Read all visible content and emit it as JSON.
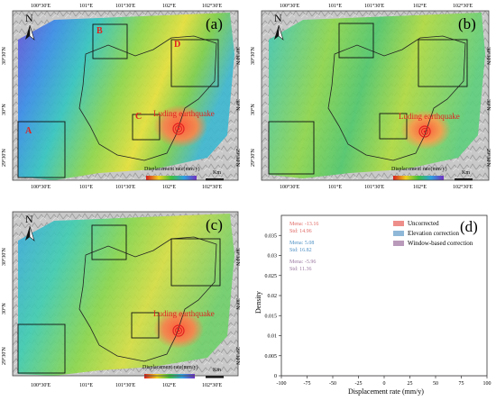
{
  "panels": {
    "a": {
      "label": "(a)",
      "boxes": [
        "A",
        "B",
        "C",
        "D"
      ],
      "legend_title": "Displacement rate(mm/y)",
      "scale_label": "Km",
      "earthquake_label": "Luding earthquake",
      "north": "N"
    },
    "b": {
      "label": "(b)",
      "legend_title": "Displacement rate(mm/y)",
      "scale_label": "Km",
      "earthquake_label": "Luding earthquake",
      "north": "N"
    },
    "c": {
      "label": "(c)",
      "legend_title": "Displacement rate(mm/y)",
      "scale_label": "Km",
      "earthquake_label": "Luding earthquake",
      "north": "N"
    }
  },
  "lon_ticks": [
    "100°30'E",
    "101°E",
    "101°30'E",
    "102°E",
    "102°30'E"
  ],
  "lat_ticks": [
    "30°30'N",
    "30°N",
    "29°30'N"
  ],
  "colors": {
    "earthquake_red": "#e02020",
    "box_line": "#111111",
    "uncorrected": "#ee8e8a",
    "elevation": "#8fb8d8",
    "window": "#b99aba"
  },
  "chart_data": {
    "type": "area",
    "panel_label": "(d)",
    "xlabel": "Displacement rate (mm/y)",
    "ylabel": "Density",
    "xlim": [
      -100,
      100
    ],
    "ylim": [
      0,
      0.04
    ],
    "x_ticks": [
      -100,
      -75,
      -50,
      -25,
      0,
      25,
      50,
      75,
      100
    ],
    "y_ticks": [
      0,
      0.005,
      0.01,
      0.015,
      0.02,
      0.025,
      0.03,
      0.035
    ],
    "legend_position": "top-right",
    "series": [
      {
        "name": "Uncorrected",
        "color": "#ee8e8a",
        "mean": -13.16,
        "std": 14.96,
        "stats": [
          "Mena: -13.16",
          "Std: 14.96"
        ]
      },
      {
        "name": "Elevation correction",
        "color": "#8fb8d8",
        "mean": 5.08,
        "std": 16.82,
        "stats": [
          "Mena: 5.08",
          "Std: 16.82"
        ]
      },
      {
        "name": "Window-based correction",
        "color": "#b99aba",
        "mean": -5.96,
        "std": 11.36,
        "stats": [
          "Mena: -5.96",
          "Std: 11.36"
        ]
      }
    ]
  }
}
